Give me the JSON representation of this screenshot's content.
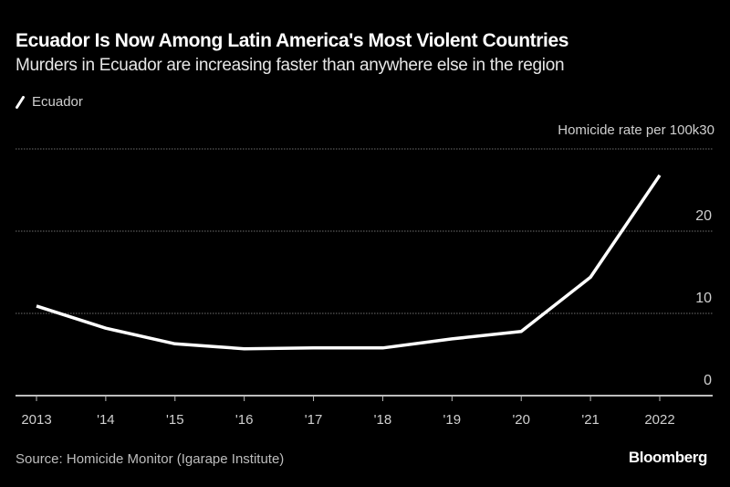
{
  "header": {
    "title": "Ecuador Is Now Among Latin America's Most Violent Countries",
    "subtitle": "Murders in Ecuador are increasing faster than anywhere else in the region"
  },
  "legend": {
    "label": "Ecuador",
    "icon": "line-swatch-icon",
    "color": "#ffffff"
  },
  "footer": {
    "source": "Source: Homicide Monitor (Igarape Institute)",
    "brand": "Bloomberg"
  },
  "chart_data": {
    "type": "line",
    "title": "Ecuador Is Now Among Latin America's Most Violent Countries",
    "subtitle": "Murders in Ecuador are increasing faster than anywhere else in the region",
    "xlabel": "",
    "ylabel": "Homicide rate per 100k",
    "x": [
      2013,
      2014,
      2015,
      2016,
      2017,
      2018,
      2019,
      2020,
      2021,
      2022
    ],
    "x_tick_labels": [
      "2013",
      "'14",
      "'15",
      "'16",
      "'17",
      "'18",
      "'19",
      "'20",
      "'21",
      "2022"
    ],
    "series": [
      {
        "name": "Ecuador",
        "color": "#ffffff",
        "values": [
          10.9,
          8.2,
          6.3,
          5.7,
          5.8,
          5.8,
          6.9,
          7.8,
          14.4,
          26.8
        ]
      }
    ],
    "y_ticks": [
      0,
      10,
      20,
      30
    ],
    "y_tick_labels": [
      "0",
      "10",
      "20",
      "30"
    ],
    "ylim": [
      0,
      30
    ],
    "grid": true,
    "legend_position": "top-left",
    "y_axis_position": "right",
    "source": "Source: Homicide Monitor (Igarape Institute)"
  }
}
